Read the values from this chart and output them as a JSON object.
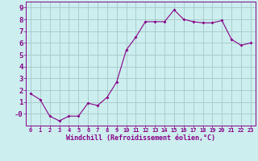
{
  "x": [
    0,
    1,
    2,
    3,
    4,
    5,
    6,
    7,
    8,
    9,
    10,
    11,
    12,
    13,
    14,
    15,
    16,
    17,
    18,
    19,
    20,
    21,
    22,
    23
  ],
  "y": [
    1.7,
    1.2,
    -0.2,
    -0.6,
    -0.2,
    -0.2,
    0.9,
    0.7,
    1.4,
    2.7,
    5.4,
    6.5,
    7.8,
    7.8,
    7.8,
    8.8,
    8.0,
    7.8,
    7.7,
    7.7,
    7.9,
    6.3,
    5.8,
    6.0
  ],
  "line_color": "#880088",
  "marker": "D",
  "marker_size": 2.0,
  "bg_color": "#cceeee",
  "grid_color": "#aacccc",
  "xlabel": "Windchill (Refroidissement éolien,°C)",
  "xlabel_color": "#880088",
  "tick_color": "#880088",
  "xlim": [
    -0.5,
    23.5
  ],
  "ylim": [
    -1.0,
    9.5
  ],
  "ytick_vals": [
    0,
    1,
    2,
    3,
    4,
    5,
    6,
    7,
    8,
    9
  ],
  "ytick_labels": [
    "-0",
    "1",
    "2",
    "3",
    "4",
    "5",
    "6",
    "7",
    "8",
    "9"
  ],
  "xticks": [
    0,
    1,
    2,
    3,
    4,
    5,
    6,
    7,
    8,
    9,
    10,
    11,
    12,
    13,
    14,
    15,
    16,
    17,
    18,
    19,
    20,
    21,
    22,
    23
  ]
}
